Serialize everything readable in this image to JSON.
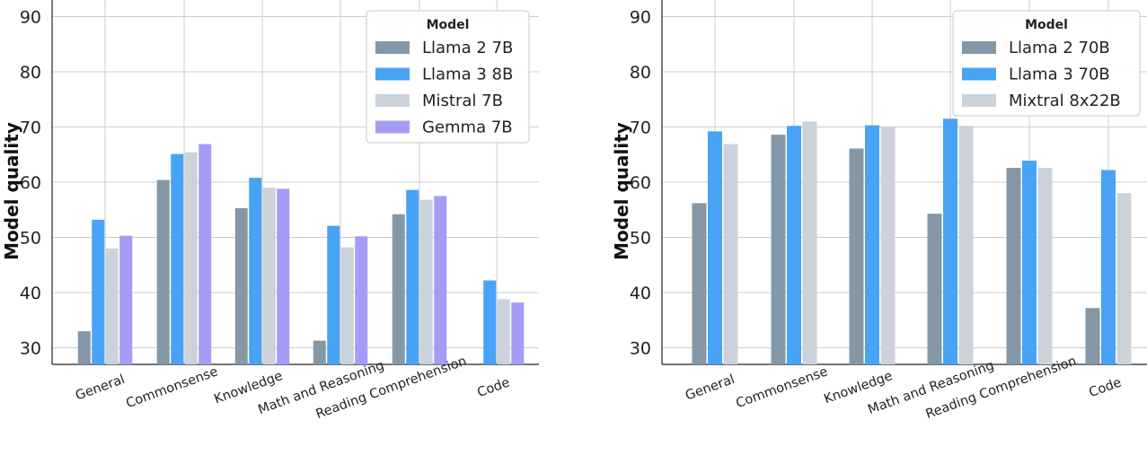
{
  "colors": {
    "grid": "#cccccc",
    "axis": "#222222",
    "legend_border": "#d0d0d0"
  },
  "chart_data": [
    {
      "type": "bar",
      "categories": [
        "General",
        "Commonsense",
        "Knowledge",
        "Math and Reasoning",
        "Reading Comprehension",
        "Code"
      ],
      "ylabel": "Model quality",
      "ylim": [
        27,
        93
      ],
      "yticks": [
        30,
        40,
        50,
        60,
        70,
        80,
        90
      ],
      "grid": true,
      "legend_title": "Model",
      "legend_position": "top-right",
      "series": [
        {
          "name": "Llama 2 7B",
          "color": "#8497a6",
          "values": [
            33.0,
            60.4,
            55.3,
            31.3,
            54.2,
            null
          ]
        },
        {
          "name": "Llama 3 8B",
          "color": "#48a3f5",
          "values": [
            53.2,
            65.1,
            60.8,
            52.1,
            58.6,
            42.2
          ]
        },
        {
          "name": "Mistral 7B",
          "color": "#cbd2da",
          "values": [
            48.0,
            65.4,
            59.0,
            48.2,
            56.8,
            38.8
          ]
        },
        {
          "name": "Gemma 7B",
          "color": "#a59cf6",
          "values": [
            50.3,
            66.9,
            58.8,
            50.2,
            57.5,
            38.2
          ]
        }
      ]
    },
    {
      "type": "bar",
      "categories": [
        "General",
        "Commonsense",
        "Knowledge",
        "Math and Reasoning",
        "Reading Comprehension",
        "Code"
      ],
      "ylabel": "Model quality",
      "ylim": [
        27,
        93
      ],
      "yticks": [
        30,
        40,
        50,
        60,
        70,
        80,
        90
      ],
      "grid": true,
      "legend_title": "Model",
      "legend_position": "top-right",
      "series": [
        {
          "name": "Llama 2 70B",
          "color": "#8497a6",
          "values": [
            56.2,
            68.6,
            66.1,
            54.3,
            62.6,
            37.2
          ]
        },
        {
          "name": "Llama 3 70B",
          "color": "#48a3f5",
          "values": [
            69.2,
            70.2,
            70.3,
            71.5,
            63.9,
            62.2
          ]
        },
        {
          "name": "Mixtral 8x22B",
          "color": "#cbd2da",
          "values": [
            66.9,
            71.0,
            69.9,
            70.2,
            62.6,
            58.0
          ]
        }
      ]
    }
  ]
}
